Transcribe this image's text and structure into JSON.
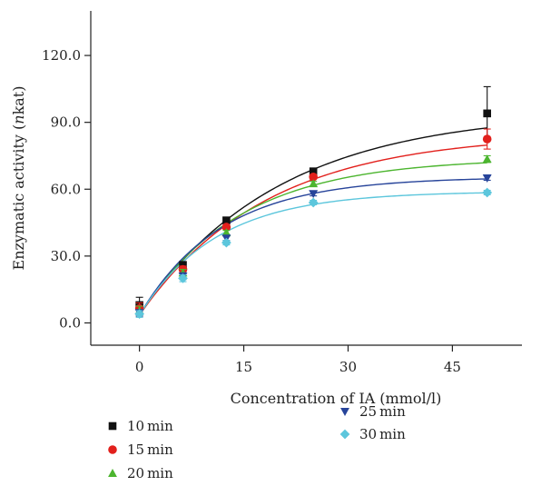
{
  "chart_data": {
    "type": "scatter",
    "title": "",
    "xlabel": "Concentration of IA (mmol/l)",
    "ylabel_parts": [
      "Enzymatic activity (",
      "n",
      "kat)"
    ],
    "xlim": [
      -7,
      55
    ],
    "ylim": [
      -10,
      140
    ],
    "xticks": [
      0,
      15,
      30,
      45
    ],
    "xtick_labels": [
      "0",
      "15",
      "30",
      "45"
    ],
    "yticks": [
      0,
      30,
      60,
      90,
      120
    ],
    "ytick_labels": [
      "0.0",
      "30.0",
      "60.0",
      "90.0",
      "120.0"
    ],
    "x": [
      0,
      6.25,
      12.5,
      25,
      50
    ],
    "grid": false,
    "legend_position": "bottom",
    "series": [
      {
        "name": "10 min",
        "marker": "square",
        "color": "#111111",
        "values": [
          8.0,
          26.0,
          46.0,
          68.0,
          94.0
        ],
        "errors": [
          3.5,
          1.5,
          1.0,
          1.0,
          12.0
        ],
        "fit": {
          "y0": 3.8,
          "ymax": 95.0,
          "k": 0.05
        }
      },
      {
        "name": "15 min",
        "marker": "circle",
        "color": "#e2201c",
        "values": [
          6.5,
          24.0,
          43.0,
          65.5,
          82.5
        ],
        "errors": [
          2.5,
          1.5,
          1.0,
          1.0,
          4.5
        ],
        "fit": {
          "y0": 3.5,
          "ymax": 85.0,
          "k": 0.055
        }
      },
      {
        "name": "20 min",
        "marker": "triangle-up",
        "color": "#4cb52f",
        "values": [
          5.5,
          22.5,
          40.5,
          62.5,
          73.5
        ],
        "errors": [
          2.0,
          1.5,
          1.0,
          1.0,
          1.5
        ],
        "fit": {
          "y0": 3.5,
          "ymax": 74.0,
          "k": 0.07
        }
      },
      {
        "name": "25 min",
        "marker": "triangle-down",
        "color": "#27449a",
        "values": [
          4.5,
          21.0,
          38.0,
          58.0,
          65.0
        ],
        "errors": [
          1.5,
          1.5,
          1.0,
          1.0,
          1.0
        ],
        "fit": {
          "y0": 3.5,
          "ymax": 65.5,
          "k": 0.085
        }
      },
      {
        "name": "30 min",
        "marker": "diamond",
        "color": "#5cc6dc",
        "values": [
          4.0,
          20.0,
          36.0,
          54.0,
          58.5
        ],
        "errors": [
          1.5,
          1.5,
          1.0,
          1.0,
          1.0
        ],
        "fit": {
          "y0": 3.5,
          "ymax": 59.0,
          "k": 0.09
        }
      }
    ]
  }
}
